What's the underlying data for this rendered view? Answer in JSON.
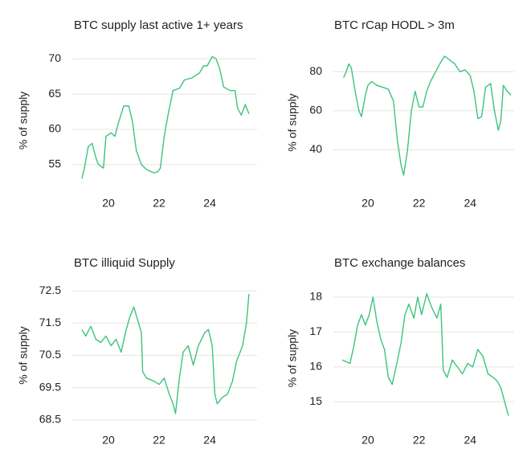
{
  "chart_data": [
    {
      "type": "line",
      "title": "BTC supply last active 1+ years",
      "y_label": "% of supply",
      "color": "#3cc47c",
      "x": [
        18.95,
        19.05,
        19.2,
        19.35,
        19.5,
        19.6,
        19.8,
        19.9,
        20.1,
        20.25,
        20.4,
        20.6,
        20.8,
        20.95,
        21.1,
        21.3,
        21.5,
        21.8,
        21.95,
        22.05,
        22.2,
        22.35,
        22.55,
        22.8,
        23.0,
        23.3,
        23.6,
        23.75,
        23.9,
        24.1,
        24.25,
        24.4,
        24.55,
        24.8,
        25.0,
        25.1,
        25.25,
        25.4,
        25.55
      ],
      "values": [
        53,
        54.5,
        57.5,
        58,
        56,
        55,
        54.5,
        59,
        59.5,
        59,
        61,
        63.3,
        63.3,
        61,
        57,
        55,
        54.3,
        53.8,
        54,
        54.5,
        59,
        62,
        65.5,
        65.8,
        67,
        67.3,
        68,
        69,
        69,
        70.3,
        70,
        68.5,
        66,
        65.5,
        65.5,
        63,
        62,
        63.5,
        62.2
      ],
      "xlim": [
        18.57,
        25.87
      ],
      "xticks": [
        20,
        22,
        24
      ],
      "ylim": [
        51,
        71.5
      ],
      "yticks": [
        55,
        60,
        65,
        70
      ],
      "grid": true
    },
    {
      "type": "line",
      "title": "BTC rCap HODL > 3m",
      "y_label": "% of supply",
      "color": "#3cc47c",
      "x": [
        19.05,
        19.15,
        19.25,
        19.35,
        19.5,
        19.65,
        19.75,
        19.9,
        20.0,
        20.15,
        20.35,
        20.6,
        20.8,
        21.0,
        21.15,
        21.3,
        21.4,
        21.55,
        21.7,
        21.85,
        22.0,
        22.15,
        22.3,
        22.45,
        22.65,
        22.85,
        23.0,
        23.2,
        23.4,
        23.6,
        23.8,
        24.0,
        24.15,
        24.3,
        24.45,
        24.6,
        24.8,
        24.95,
        25.1,
        25.2,
        25.3,
        25.45,
        25.6
      ],
      "values": [
        77,
        80,
        84,
        82,
        70,
        60,
        57,
        68,
        73,
        75,
        73,
        72,
        71,
        65,
        45,
        32,
        27,
        40,
        60,
        70,
        62,
        62,
        70,
        75,
        80,
        85,
        88,
        86,
        84,
        80,
        81,
        78,
        70,
        56,
        57,
        72,
        74,
        60,
        50,
        55,
        73,
        70,
        68
      ],
      "xlim": [
        18.65,
        25.72
      ],
      "xticks": [
        20,
        22,
        24
      ],
      "ylim": [
        18,
        90
      ],
      "yticks": [
        40,
        60,
        80
      ],
      "grid": true
    },
    {
      "type": "line",
      "title": "BTC illiquid Supply",
      "y_label": "% of supply",
      "color": "#3cc47c",
      "x": [
        18.95,
        19.1,
        19.3,
        19.5,
        19.7,
        19.9,
        20.1,
        20.3,
        20.5,
        20.7,
        20.85,
        21.0,
        21.15,
        21.3,
        21.35,
        21.5,
        21.8,
        22.0,
        22.2,
        22.4,
        22.55,
        22.65,
        22.8,
        22.95,
        23.15,
        23.35,
        23.55,
        23.8,
        23.95,
        24.1,
        24.2,
        24.3,
        24.5,
        24.7,
        24.9,
        25.05,
        25.2,
        25.3,
        25.45,
        25.55
      ],
      "values": [
        71.3,
        71.1,
        71.4,
        71.0,
        70.9,
        71.1,
        70.8,
        71.0,
        70.6,
        71.3,
        71.7,
        72.0,
        71.6,
        71.2,
        70.0,
        69.8,
        69.7,
        69.6,
        69.8,
        69.3,
        69.0,
        68.7,
        69.8,
        70.6,
        70.8,
        70.2,
        70.8,
        71.2,
        71.3,
        70.8,
        69.3,
        69.0,
        69.2,
        69.3,
        69.7,
        70.3,
        70.6,
        70.8,
        71.5,
        72.4
      ],
      "xlim": [
        18.57,
        25.87
      ],
      "xticks": [
        20,
        22,
        24
      ],
      "ylim": [
        68.2,
        72.8
      ],
      "yticks": [
        68.5,
        69.5,
        70.5,
        71.5,
        72.5
      ],
      "grid": true
    },
    {
      "type": "line",
      "title": "BTC exchange balances",
      "y_label": "% of supply",
      "color": "#3cc47c",
      "x": [
        19.0,
        19.3,
        19.45,
        19.6,
        19.75,
        19.9,
        20.05,
        20.2,
        20.35,
        20.5,
        20.65,
        20.8,
        20.95,
        21.1,
        21.3,
        21.45,
        21.6,
        21.8,
        21.95,
        22.1,
        22.3,
        22.5,
        22.7,
        22.85,
        22.95,
        23.1,
        23.3,
        23.5,
        23.7,
        23.9,
        24.1,
        24.3,
        24.5,
        24.7,
        24.9,
        25.05,
        25.2,
        25.35,
        25.5
      ],
      "values": [
        16.2,
        16.1,
        16.6,
        17.2,
        17.5,
        17.2,
        17.5,
        18.0,
        17.3,
        16.8,
        16.5,
        15.7,
        15.5,
        16.0,
        16.7,
        17.5,
        17.8,
        17.4,
        18.0,
        17.5,
        18.1,
        17.7,
        17.4,
        17.8,
        15.9,
        15.7,
        16.2,
        16.0,
        15.8,
        16.1,
        16.0,
        16.5,
        16.3,
        15.8,
        15.7,
        15.6,
        15.4,
        15.0,
        14.6
      ],
      "xlim": [
        18.65,
        25.72
      ],
      "xticks": [
        20,
        22,
        24
      ],
      "ylim": [
        14.2,
        18.3
      ],
      "yticks": [
        15,
        16,
        17,
        18
      ],
      "grid": true
    }
  ]
}
